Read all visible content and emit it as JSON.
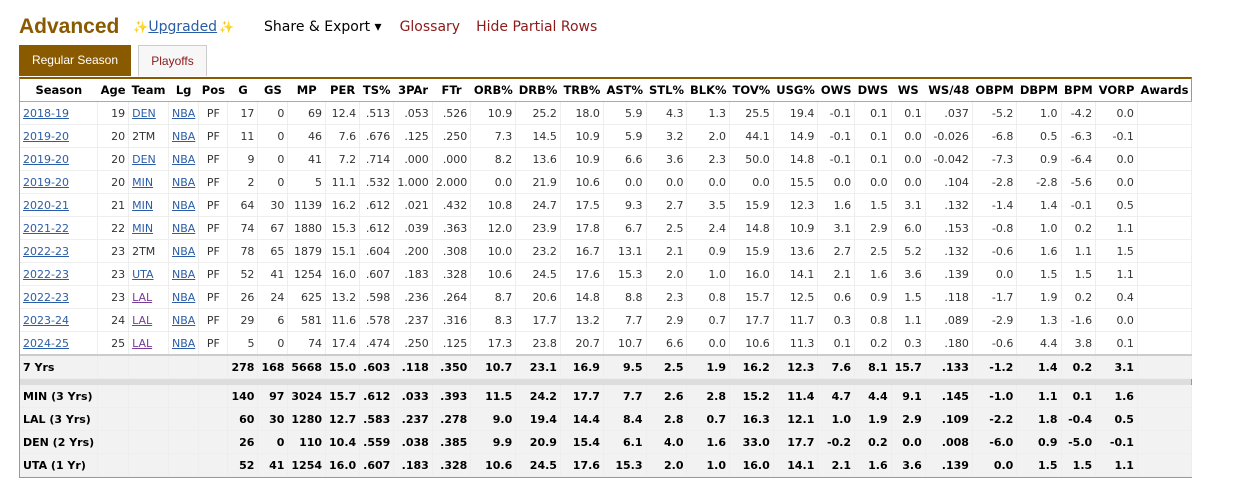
{
  "header": {
    "title": "Advanced",
    "upgraded": "Upgraded",
    "share": "Share & Export ▾",
    "glossary": "Glossary",
    "hide_partial": "Hide Partial Rows"
  },
  "tabs": [
    "Regular Season",
    "Playoffs"
  ],
  "columns": [
    "Season",
    "Age",
    "Team",
    "Lg",
    "Pos",
    "G",
    "GS",
    "MP",
    "PER",
    "TS%",
    "3PAr",
    "FTr",
    "ORB%",
    "DRB%",
    "TRB%",
    "AST%",
    "STL%",
    "BLK%",
    "TOV%",
    "USG%",
    "OWS",
    "DWS",
    "WS",
    "WS/48",
    "OBPM",
    "DBPM",
    "BPM",
    "VORP",
    "Awards"
  ],
  "rows": [
    [
      "2018-19",
      "19",
      "DEN",
      "NBA",
      "PF",
      "17",
      "0",
      "69",
      "12.4",
      ".513",
      ".053",
      ".526",
      "10.9",
      "25.2",
      "18.0",
      "5.9",
      "4.3",
      "1.3",
      "25.5",
      "19.4",
      "-0.1",
      "0.1",
      "0.1",
      ".037",
      "-5.2",
      "1.0",
      "-4.2",
      "0.0",
      ""
    ],
    [
      "2019-20",
      "20",
      "2TM",
      "NBA",
      "PF",
      "11",
      "0",
      "46",
      "7.6",
      ".676",
      ".125",
      ".250",
      "7.3",
      "14.5",
      "10.9",
      "5.9",
      "3.2",
      "2.0",
      "44.1",
      "14.9",
      "-0.1",
      "0.1",
      "0.0",
      "-0.026",
      "-6.8",
      "0.5",
      "-6.3",
      "-0.1",
      ""
    ],
    [
      "2019-20",
      "20",
      "DEN",
      "NBA",
      "PF",
      "9",
      "0",
      "41",
      "7.2",
      ".714",
      ".000",
      ".000",
      "8.2",
      "13.6",
      "10.9",
      "6.6",
      "3.6",
      "2.3",
      "50.0",
      "14.8",
      "-0.1",
      "0.1",
      "0.0",
      "-0.042",
      "-7.3",
      "0.9",
      "-6.4",
      "0.0",
      ""
    ],
    [
      "2019-20",
      "20",
      "MIN",
      "NBA",
      "PF",
      "2",
      "0",
      "5",
      "11.1",
      ".532",
      "1.000",
      "2.000",
      "0.0",
      "21.9",
      "10.6",
      "0.0",
      "0.0",
      "0.0",
      "0.0",
      "15.5",
      "0.0",
      "0.0",
      "0.0",
      ".104",
      "-2.8",
      "-2.8",
      "-5.6",
      "0.0",
      ""
    ],
    [
      "2020-21",
      "21",
      "MIN",
      "NBA",
      "PF",
      "64",
      "30",
      "1139",
      "16.2",
      ".612",
      ".021",
      ".432",
      "10.8",
      "24.7",
      "17.5",
      "9.3",
      "2.7",
      "3.5",
      "15.9",
      "12.3",
      "1.6",
      "1.5",
      "3.1",
      ".132",
      "-1.4",
      "1.4",
      "-0.1",
      "0.5",
      ""
    ],
    [
      "2021-22",
      "22",
      "MIN",
      "NBA",
      "PF",
      "74",
      "67",
      "1880",
      "15.3",
      ".612",
      ".039",
      ".363",
      "12.0",
      "23.9",
      "17.8",
      "6.7",
      "2.5",
      "2.4",
      "14.8",
      "10.9",
      "3.1",
      "2.9",
      "6.0",
      ".153",
      "-0.8",
      "1.0",
      "0.2",
      "1.1",
      ""
    ],
    [
      "2022-23",
      "23",
      "2TM",
      "NBA",
      "PF",
      "78",
      "65",
      "1879",
      "15.1",
      ".604",
      ".200",
      ".308",
      "10.0",
      "23.2",
      "16.7",
      "13.1",
      "2.1",
      "0.9",
      "15.9",
      "13.6",
      "2.7",
      "2.5",
      "5.2",
      ".132",
      "-0.6",
      "1.6",
      "1.1",
      "1.5",
      ""
    ],
    [
      "2022-23",
      "23",
      "UTA",
      "NBA",
      "PF",
      "52",
      "41",
      "1254",
      "16.0",
      ".607",
      ".183",
      ".328",
      "10.6",
      "24.5",
      "17.6",
      "15.3",
      "2.0",
      "1.0",
      "16.0",
      "14.1",
      "2.1",
      "1.6",
      "3.6",
      ".139",
      "0.0",
      "1.5",
      "1.5",
      "1.1",
      ""
    ],
    [
      "2022-23",
      "23",
      "LAL",
      "NBA",
      "PF",
      "26",
      "24",
      "625",
      "13.2",
      ".598",
      ".236",
      ".264",
      "8.7",
      "20.6",
      "14.8",
      "8.8",
      "2.3",
      "0.8",
      "15.7",
      "12.5",
      "0.6",
      "0.9",
      "1.5",
      ".118",
      "-1.7",
      "1.9",
      "0.2",
      "0.4",
      ""
    ],
    [
      "2023-24",
      "24",
      "LAL",
      "NBA",
      "PF",
      "29",
      "6",
      "581",
      "11.6",
      ".578",
      ".237",
      ".316",
      "8.3",
      "17.7",
      "13.2",
      "7.7",
      "2.9",
      "0.7",
      "17.7",
      "11.7",
      "0.3",
      "0.8",
      "1.1",
      ".089",
      "-2.9",
      "1.3",
      "-1.6",
      "0.0",
      ""
    ],
    [
      "2024-25",
      "25",
      "LAL",
      "NBA",
      "PF",
      "5",
      "0",
      "74",
      "17.4",
      ".474",
      ".250",
      ".125",
      "17.3",
      "23.8",
      "20.7",
      "10.7",
      "6.6",
      "0.0",
      "10.6",
      "11.3",
      "0.1",
      "0.2",
      "0.3",
      ".180",
      "-0.6",
      "4.4",
      "3.8",
      "0.1",
      ""
    ]
  ],
  "total": [
    "7 Yrs",
    "",
    "",
    "",
    "",
    "278",
    "168",
    "5668",
    "15.0",
    ".603",
    ".118",
    ".350",
    "10.7",
    "23.1",
    "16.9",
    "9.5",
    "2.5",
    "1.9",
    "16.2",
    "12.3",
    "7.6",
    "8.1",
    "15.7",
    ".133",
    "-1.2",
    "1.4",
    "0.2",
    "3.1",
    ""
  ],
  "subtotals": [
    [
      "MIN (3 Yrs)",
      "",
      "",
      "",
      "",
      "140",
      "97",
      "3024",
      "15.7",
      ".612",
      ".033",
      ".393",
      "11.5",
      "24.2",
      "17.7",
      "7.7",
      "2.6",
      "2.8",
      "15.2",
      "11.4",
      "4.7",
      "4.4",
      "9.1",
      ".145",
      "-1.0",
      "1.1",
      "0.1",
      "1.6",
      ""
    ],
    [
      "LAL (3 Yrs)",
      "",
      "",
      "",
      "",
      "60",
      "30",
      "1280",
      "12.7",
      ".583",
      ".237",
      ".278",
      "9.0",
      "19.4",
      "14.4",
      "8.4",
      "2.8",
      "0.7",
      "16.3",
      "12.1",
      "1.0",
      "1.9",
      "2.9",
      ".109",
      "-2.2",
      "1.8",
      "-0.4",
      "0.5",
      ""
    ],
    [
      "DEN (2 Yrs)",
      "",
      "",
      "",
      "",
      "26",
      "0",
      "110",
      "10.4",
      ".559",
      ".038",
      ".385",
      "9.9",
      "20.9",
      "15.4",
      "6.1",
      "4.0",
      "1.6",
      "33.0",
      "17.7",
      "-0.2",
      "0.2",
      "0.0",
      ".008",
      "-6.0",
      "0.9",
      "-5.0",
      "-0.1",
      ""
    ],
    [
      "UTA (1 Yr)",
      "",
      "",
      "",
      "",
      "52",
      "41",
      "1254",
      "16.0",
      ".607",
      ".183",
      ".328",
      "10.6",
      "24.5",
      "17.6",
      "15.3",
      "2.0",
      "1.0",
      "16.0",
      "14.1",
      "2.1",
      "1.6",
      "3.6",
      ".139",
      "0.0",
      "1.5",
      "1.5",
      "1.1",
      ""
    ]
  ],
  "colors": {
    "brand": "#8a5a00",
    "link": "#2b5da6",
    "red_link": "#8b1a1a",
    "lal": "#7a3b9a"
  }
}
